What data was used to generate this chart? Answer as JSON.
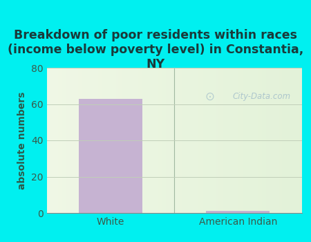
{
  "title": "Breakdown of poor residents within races\n(income below poverty level) in Constantia,\nNY",
  "categories": [
    "White",
    "American Indian"
  ],
  "values": [
    63,
    1
  ],
  "bar_color": "#c0a8d0",
  "ylabel": "absolute numbers",
  "ylim": [
    0,
    80
  ],
  "yticks": [
    0,
    20,
    40,
    60,
    80
  ],
  "bg_color": "#00f0f0",
  "title_color": "#1a3a3a",
  "axis_label_color": "#2d5a4a",
  "tick_color": "#3a5a4a",
  "grid_color": "#c0ceb8",
  "watermark": "City-Data.com",
  "title_fontsize": 12.5,
  "ylabel_fontsize": 10,
  "tick_fontsize": 10
}
